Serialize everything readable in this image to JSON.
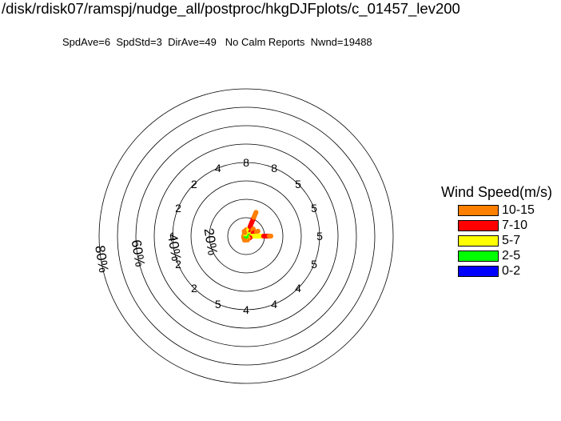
{
  "title": "/disk/rdisk07/ramspj/nudge_all/postproc/hkgDJFplots/c_01457_lev200",
  "stats": {
    "spd_ave": "SpdAve=6",
    "spd_std": "SpdStd=3",
    "dir_ave": "DirAve=49",
    "calm": "No Calm Reports",
    "nwnd": "Nwnd=19488"
  },
  "legend": {
    "title": "Wind Speed(m/s)",
    "items": [
      {
        "label": "10-15",
        "color": "#ff7f00"
      },
      {
        "label": "7-10",
        "color": "#ff0000"
      },
      {
        "label": "5-7",
        "color": "#ffff00"
      },
      {
        "label": "2-5",
        "color": "#00ff00"
      },
      {
        "label": "0-2",
        "color": "#0000ff"
      }
    ]
  },
  "chart_data": {
    "type": "wind-rose",
    "radial_unit": "percent frequency",
    "rings": [
      10,
      20,
      30,
      40,
      50,
      60,
      70,
      80
    ],
    "ring_labels": [
      {
        "ring": 20,
        "text": "20%"
      },
      {
        "ring": 40,
        "text": "40%"
      },
      {
        "ring": 60,
        "text": "60%"
      },
      {
        "ring": 80,
        "text": "80%"
      }
    ],
    "direction_labels": [
      {
        "dir": 0,
        "text": "8"
      },
      {
        "dir": 22.5,
        "text": "8"
      },
      {
        "dir": 45,
        "text": "5"
      },
      {
        "dir": 67.5,
        "text": "5"
      },
      {
        "dir": 90,
        "text": "5"
      },
      {
        "dir": 112.5,
        "text": "5"
      },
      {
        "dir": 135,
        "text": "4"
      },
      {
        "dir": 157.5,
        "text": "4"
      },
      {
        "dir": 180,
        "text": "4"
      },
      {
        "dir": 202.5,
        "text": "5"
      },
      {
        "dir": 225,
        "text": "2"
      },
      {
        "dir": 247.5,
        "text": "2"
      },
      {
        "dir": 270,
        "text": "1"
      },
      {
        "dir": 292.5,
        "text": "2"
      },
      {
        "dir": 315,
        "text": "2"
      },
      {
        "dir": 337.5,
        "text": "4"
      }
    ],
    "petals": [
      {
        "dir": 0,
        "segments": [
          {
            "bin": "2-5",
            "to": 1
          },
          {
            "bin": "5-7",
            "to": 1.8
          },
          {
            "bin": "7-10",
            "to": 2.5
          },
          {
            "bin": "10-15",
            "to": 3.5
          }
        ]
      },
      {
        "dir": 22.5,
        "segments": [
          {
            "bin": "2-5",
            "to": 3
          },
          {
            "bin": "5-7",
            "to": 5.5
          },
          {
            "bin": "7-10",
            "to": 11
          },
          {
            "bin": "10-15",
            "to": 14
          }
        ]
      },
      {
        "dir": 45,
        "segments": [
          {
            "bin": "2-5",
            "to": 2
          },
          {
            "bin": "5-7",
            "to": 3.5
          },
          {
            "bin": "7-10",
            "to": 5
          },
          {
            "bin": "10-15",
            "to": 5.5
          }
        ]
      },
      {
        "dir": 67.5,
        "segments": [
          {
            "bin": "2-5",
            "to": 2
          },
          {
            "bin": "5-7",
            "to": 4
          },
          {
            "bin": "7-10",
            "to": 6
          },
          {
            "bin": "10-15",
            "to": 7
          }
        ]
      },
      {
        "dir": 90,
        "segments": [
          {
            "bin": "2-5",
            "to": 3
          },
          {
            "bin": "5-7",
            "to": 9.5
          },
          {
            "bin": "7-10",
            "to": 12.5
          },
          {
            "bin": "10-15",
            "to": 13.5
          }
        ]
      },
      {
        "dir": 112.5,
        "segments": [
          {
            "bin": "2-5",
            "to": 1
          },
          {
            "bin": "5-7",
            "to": 1.8
          },
          {
            "bin": "7-10",
            "to": 2.3
          }
        ]
      },
      {
        "dir": 135,
        "segments": [
          {
            "bin": "2-5",
            "to": 1
          },
          {
            "bin": "5-7",
            "to": 1.5
          }
        ]
      },
      {
        "dir": 157.5,
        "segments": [
          {
            "bin": "2-5",
            "to": 1
          },
          {
            "bin": "5-7",
            "to": 1.5
          },
          {
            "bin": "10-15",
            "to": 2.3
          }
        ]
      },
      {
        "dir": 180,
        "segments": [
          {
            "bin": "2-5",
            "to": 1
          },
          {
            "bin": "5-7",
            "to": 1.5
          },
          {
            "bin": "10-15",
            "to": 2.1
          }
        ]
      },
      {
        "dir": 202.5,
        "segments": [
          {
            "bin": "2-5",
            "to": 1.3
          },
          {
            "bin": "5-7",
            "to": 2
          },
          {
            "bin": "10-15",
            "to": 2.4
          }
        ]
      },
      {
        "dir": 225,
        "segments": [
          {
            "bin": "2-5",
            "to": 1
          },
          {
            "bin": "10-15",
            "to": 1.7
          }
        ]
      },
      {
        "dir": 247.5,
        "segments": [
          {
            "bin": "10-15",
            "to": 1.5
          }
        ]
      },
      {
        "dir": 270,
        "segments": [
          {
            "bin": "10-15",
            "to": 1.3
          }
        ]
      },
      {
        "dir": 292.5,
        "segments": [
          {
            "bin": "10-15",
            "to": 1.3
          }
        ]
      },
      {
        "dir": 315,
        "segments": [
          {
            "bin": "2-5",
            "to": 1
          },
          {
            "bin": "10-15",
            "to": 1.5
          }
        ]
      },
      {
        "dir": 337.5,
        "segments": [
          {
            "bin": "2-5",
            "to": 1.2
          },
          {
            "bin": "5-7",
            "to": 2
          },
          {
            "bin": "10-15",
            "to": 2.8
          }
        ]
      }
    ]
  }
}
